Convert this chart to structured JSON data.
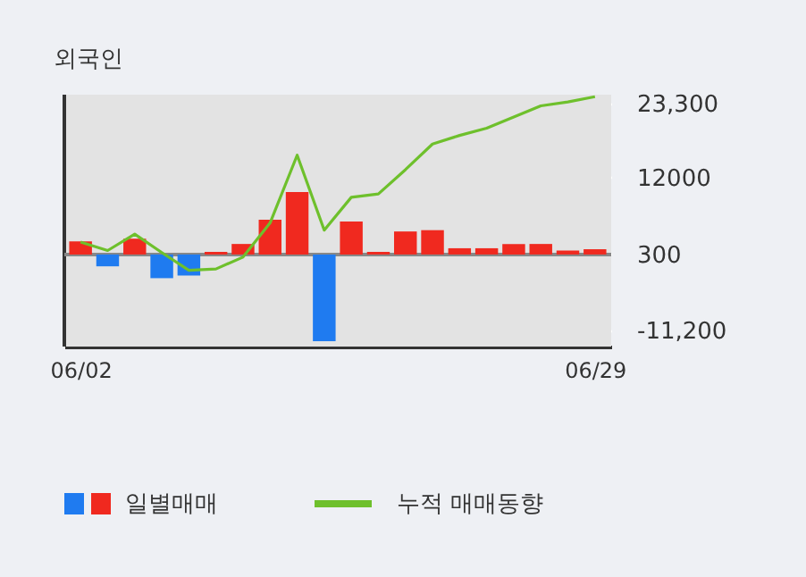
{
  "chart_data": {
    "type": "bar",
    "title": "외국인",
    "categories": [
      "06/02",
      null,
      null,
      null,
      null,
      null,
      null,
      null,
      null,
      null,
      null,
      null,
      null,
      null,
      null,
      null,
      null,
      null,
      null,
      "06/29"
    ],
    "series": [
      {
        "name": "일별매매",
        "colors": [
          "#f0291f",
          "#1f7bf0",
          "#f0291f",
          "#1f7bf0",
          "#1f7bf0",
          "#f0291f",
          "#f0291f",
          "#f0291f",
          "#f0291f",
          "#1f7bf0",
          "#f0291f",
          "#f0291f",
          "#f0291f",
          "#f0291f",
          "#f0291f",
          "#f0291f",
          "#f0291f",
          "#f0291f",
          "#f0291f",
          "#f0291f"
        ],
        "values": [
          2000,
          -1800,
          2400,
          -3600,
          -3200,
          400,
          1600,
          5300,
          9500,
          -13200,
          5000,
          400,
          3500,
          3700,
          950,
          950,
          1600,
          1600,
          600,
          800
        ],
        "base": [
          300,
          300,
          300,
          300,
          300,
          300,
          300,
          300,
          300,
          300,
          300,
          300,
          300,
          300,
          300,
          300,
          300,
          300,
          300,
          300
        ]
      },
      {
        "name": "누적 매매동향",
        "type": "line",
        "color": "#6ec02c",
        "values": [
          2200,
          900,
          3400,
          600,
          -2100,
          -1900,
          -100,
          5100,
          15400,
          4000,
          9000,
          9500,
          13200,
          17100,
          18400,
          19500,
          21200,
          22900,
          23500,
          24300
        ]
      }
    ],
    "ylim": [
      -13700,
      24600
    ],
    "yticks": [
      {
        "value": 23300,
        "label": "23,300"
      },
      12000,
      300,
      {
        "value": -11200,
        "label": "-11,200"
      }
    ],
    "ref_lines": [
      {
        "axis": "y",
        "value": 300,
        "color": "#888888"
      }
    ],
    "grid": true,
    "legend": "bottom"
  }
}
